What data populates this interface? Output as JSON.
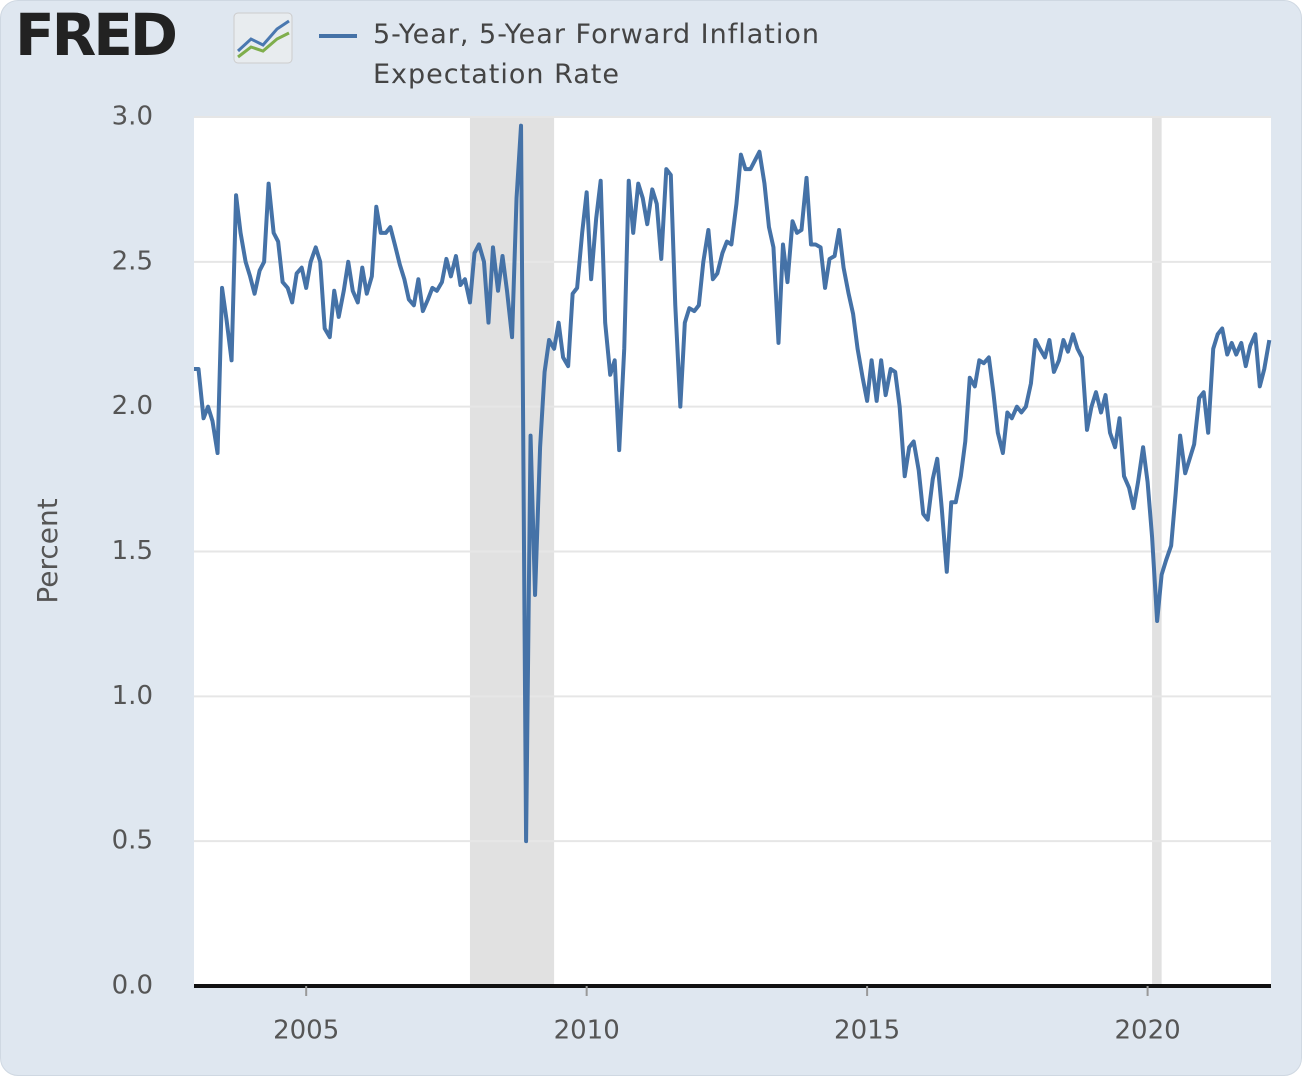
{
  "chart_data": {
    "type": "line",
    "logo": "FRED",
    "ylabel": "Percent",
    "xlim": [
      2003,
      2022.2
    ],
    "xticks": [
      2005,
      2010,
      2015,
      2020
    ],
    "ylim": [
      0,
      3
    ],
    "yticks": [
      {
        "value": 0,
        "label": "0.0"
      },
      0.5,
      {
        "value": 1,
        "label": "1.0"
      },
      1.5,
      {
        "value": 2,
        "label": "2.0"
      },
      2.5,
      {
        "value": 3,
        "label": "3.0"
      }
    ],
    "grid": true,
    "recessions": [
      [
        2007.92,
        2009.42
      ],
      [
        2020.08,
        2020.25
      ]
    ],
    "recession_color": "#e1e1e1",
    "x": [
      2003.0,
      2003.08,
      2003.17,
      2003.25,
      2003.33,
      2003.42,
      2003.5,
      2003.58,
      2003.67,
      2003.75,
      2003.83,
      2003.92,
      2004.0,
      2004.08,
      2004.17,
      2004.25,
      2004.33,
      2004.42,
      2004.5,
      2004.58,
      2004.67,
      2004.75,
      2004.83,
      2004.92,
      2005.0,
      2005.08,
      2005.17,
      2005.25,
      2005.33,
      2005.42,
      2005.5,
      2005.58,
      2005.67,
      2005.75,
      2005.83,
      2005.92,
      2006.0,
      2006.08,
      2006.17,
      2006.25,
      2006.33,
      2006.42,
      2006.5,
      2006.58,
      2006.67,
      2006.75,
      2006.83,
      2006.92,
      2007.0,
      2007.08,
      2007.17,
      2007.25,
      2007.33,
      2007.42,
      2007.5,
      2007.58,
      2007.67,
      2007.75,
      2007.83,
      2007.92,
      2008.0,
      2008.08,
      2008.17,
      2008.25,
      2008.33,
      2008.42,
      2008.5,
      2008.58,
      2008.67,
      2008.75,
      2008.83,
      2008.92,
      2009.0,
      2009.08,
      2009.17,
      2009.25,
      2009.33,
      2009.42,
      2009.5,
      2009.58,
      2009.67,
      2009.75,
      2009.83,
      2009.92,
      2010.0,
      2010.08,
      2010.17,
      2010.25,
      2010.33,
      2010.42,
      2010.5,
      2010.58,
      2010.67,
      2010.75,
      2010.83,
      2010.92,
      2011.0,
      2011.08,
      2011.17,
      2011.25,
      2011.33,
      2011.42,
      2011.5,
      2011.58,
      2011.67,
      2011.75,
      2011.83,
      2011.92,
      2012.0,
      2012.08,
      2012.17,
      2012.25,
      2012.33,
      2012.42,
      2012.5,
      2012.58,
      2012.67,
      2012.75,
      2012.83,
      2012.92,
      2013.0,
      2013.08,
      2013.17,
      2013.25,
      2013.33,
      2013.42,
      2013.5,
      2013.58,
      2013.67,
      2013.75,
      2013.83,
      2013.92,
      2014.0,
      2014.08,
      2014.17,
      2014.25,
      2014.33,
      2014.42,
      2014.5,
      2014.58,
      2014.67,
      2014.75,
      2014.83,
      2014.92,
      2015.0,
      2015.08,
      2015.17,
      2015.25,
      2015.33,
      2015.42,
      2015.5,
      2015.58,
      2015.67,
      2015.75,
      2015.83,
      2015.92,
      2016.0,
      2016.08,
      2016.17,
      2016.25,
      2016.33,
      2016.42,
      2016.5,
      2016.58,
      2016.67,
      2016.75,
      2016.83,
      2016.92,
      2017.0,
      2017.08,
      2017.17,
      2017.25,
      2017.33,
      2017.42,
      2017.5,
      2017.58,
      2017.67,
      2017.75,
      2017.83,
      2017.92,
      2018.0,
      2018.08,
      2018.17,
      2018.25,
      2018.33,
      2018.42,
      2018.5,
      2018.58,
      2018.67,
      2018.75,
      2018.83,
      2018.92,
      2019.0,
      2019.08,
      2019.17,
      2019.25,
      2019.33,
      2019.42,
      2019.5,
      2019.58,
      2019.67,
      2019.75,
      2019.83,
      2019.92,
      2020.0,
      2020.08,
      2020.17,
      2020.25,
      2020.33,
      2020.42,
      2020.5,
      2020.58,
      2020.67,
      2020.75,
      2020.83,
      2020.92,
      2021.0,
      2021.08,
      2021.17,
      2021.25,
      2021.33,
      2021.42,
      2021.5,
      2021.58,
      2021.67,
      2021.75,
      2021.83,
      2021.92,
      2022.0,
      2022.08,
      2022.17
    ],
    "series": [
      {
        "name": "5-Year, 5-Year Forward Inflation Expectation Rate",
        "color": "#4572a7",
        "values": [
          2.13,
          2.13,
          1.96,
          2.0,
          1.95,
          1.84,
          2.41,
          2.3,
          2.16,
          2.73,
          2.6,
          2.5,
          2.45,
          2.39,
          2.47,
          2.5,
          2.77,
          2.6,
          2.57,
          2.43,
          2.41,
          2.36,
          2.46,
          2.48,
          2.41,
          2.5,
          2.55,
          2.5,
          2.27,
          2.24,
          2.4,
          2.31,
          2.4,
          2.5,
          2.4,
          2.36,
          2.48,
          2.39,
          2.45,
          2.69,
          2.6,
          2.6,
          2.62,
          2.56,
          2.49,
          2.44,
          2.37,
          2.35,
          2.44,
          2.33,
          2.37,
          2.41,
          2.4,
          2.43,
          2.51,
          2.45,
          2.52,
          2.42,
          2.44,
          2.36,
          2.53,
          2.56,
          2.5,
          2.29,
          2.55,
          2.4,
          2.52,
          2.4,
          2.24,
          2.72,
          2.97,
          0.5,
          1.9,
          1.35,
          1.86,
          2.12,
          2.23,
          2.2,
          2.29,
          2.17,
          2.14,
          2.39,
          2.41,
          2.6,
          2.74,
          2.44,
          2.65,
          2.78,
          2.29,
          2.11,
          2.16,
          1.85,
          2.2,
          2.78,
          2.6,
          2.77,
          2.72,
          2.63,
          2.75,
          2.7,
          2.51,
          2.82,
          2.8,
          2.35,
          2.0,
          2.29,
          2.34,
          2.33,
          2.35,
          2.5,
          2.61,
          2.44,
          2.46,
          2.53,
          2.57,
          2.56,
          2.7,
          2.87,
          2.82,
          2.82,
          2.85,
          2.88,
          2.77,
          2.62,
          2.55,
          2.22,
          2.56,
          2.43,
          2.64,
          2.6,
          2.61,
          2.79,
          2.56,
          2.56,
          2.55,
          2.41,
          2.51,
          2.52,
          2.61,
          2.48,
          2.39,
          2.32,
          2.2,
          2.1,
          2.02,
          2.16,
          2.02,
          2.16,
          2.04,
          2.13,
          2.12,
          2.0,
          1.76,
          1.86,
          1.88,
          1.78,
          1.63,
          1.61,
          1.75,
          1.82,
          1.65,
          1.43,
          1.67,
          1.67,
          1.76,
          1.88,
          2.1,
          2.07,
          2.16,
          2.15,
          2.17,
          2.05,
          1.91,
          1.84,
          1.98,
          1.96,
          2.0,
          1.98,
          2.0,
          2.08,
          2.23,
          2.2,
          2.17,
          2.23,
          2.12,
          2.16,
          2.23,
          2.19,
          2.25,
          2.2,
          2.17,
          1.92,
          2.0,
          2.05,
          1.98,
          2.04,
          1.91,
          1.86,
          1.96,
          1.76,
          1.72,
          1.65,
          1.74,
          1.86,
          1.74,
          1.55,
          1.26,
          1.42,
          1.47,
          1.52,
          1.7,
          1.9,
          1.77,
          1.82,
          1.87,
          2.03,
          2.05,
          1.91,
          2.2,
          2.25,
          2.27,
          2.18,
          2.22,
          2.18,
          2.22,
          2.14,
          2.21,
          2.25,
          2.07,
          2.13,
          2.23
        ]
      }
    ]
  }
}
